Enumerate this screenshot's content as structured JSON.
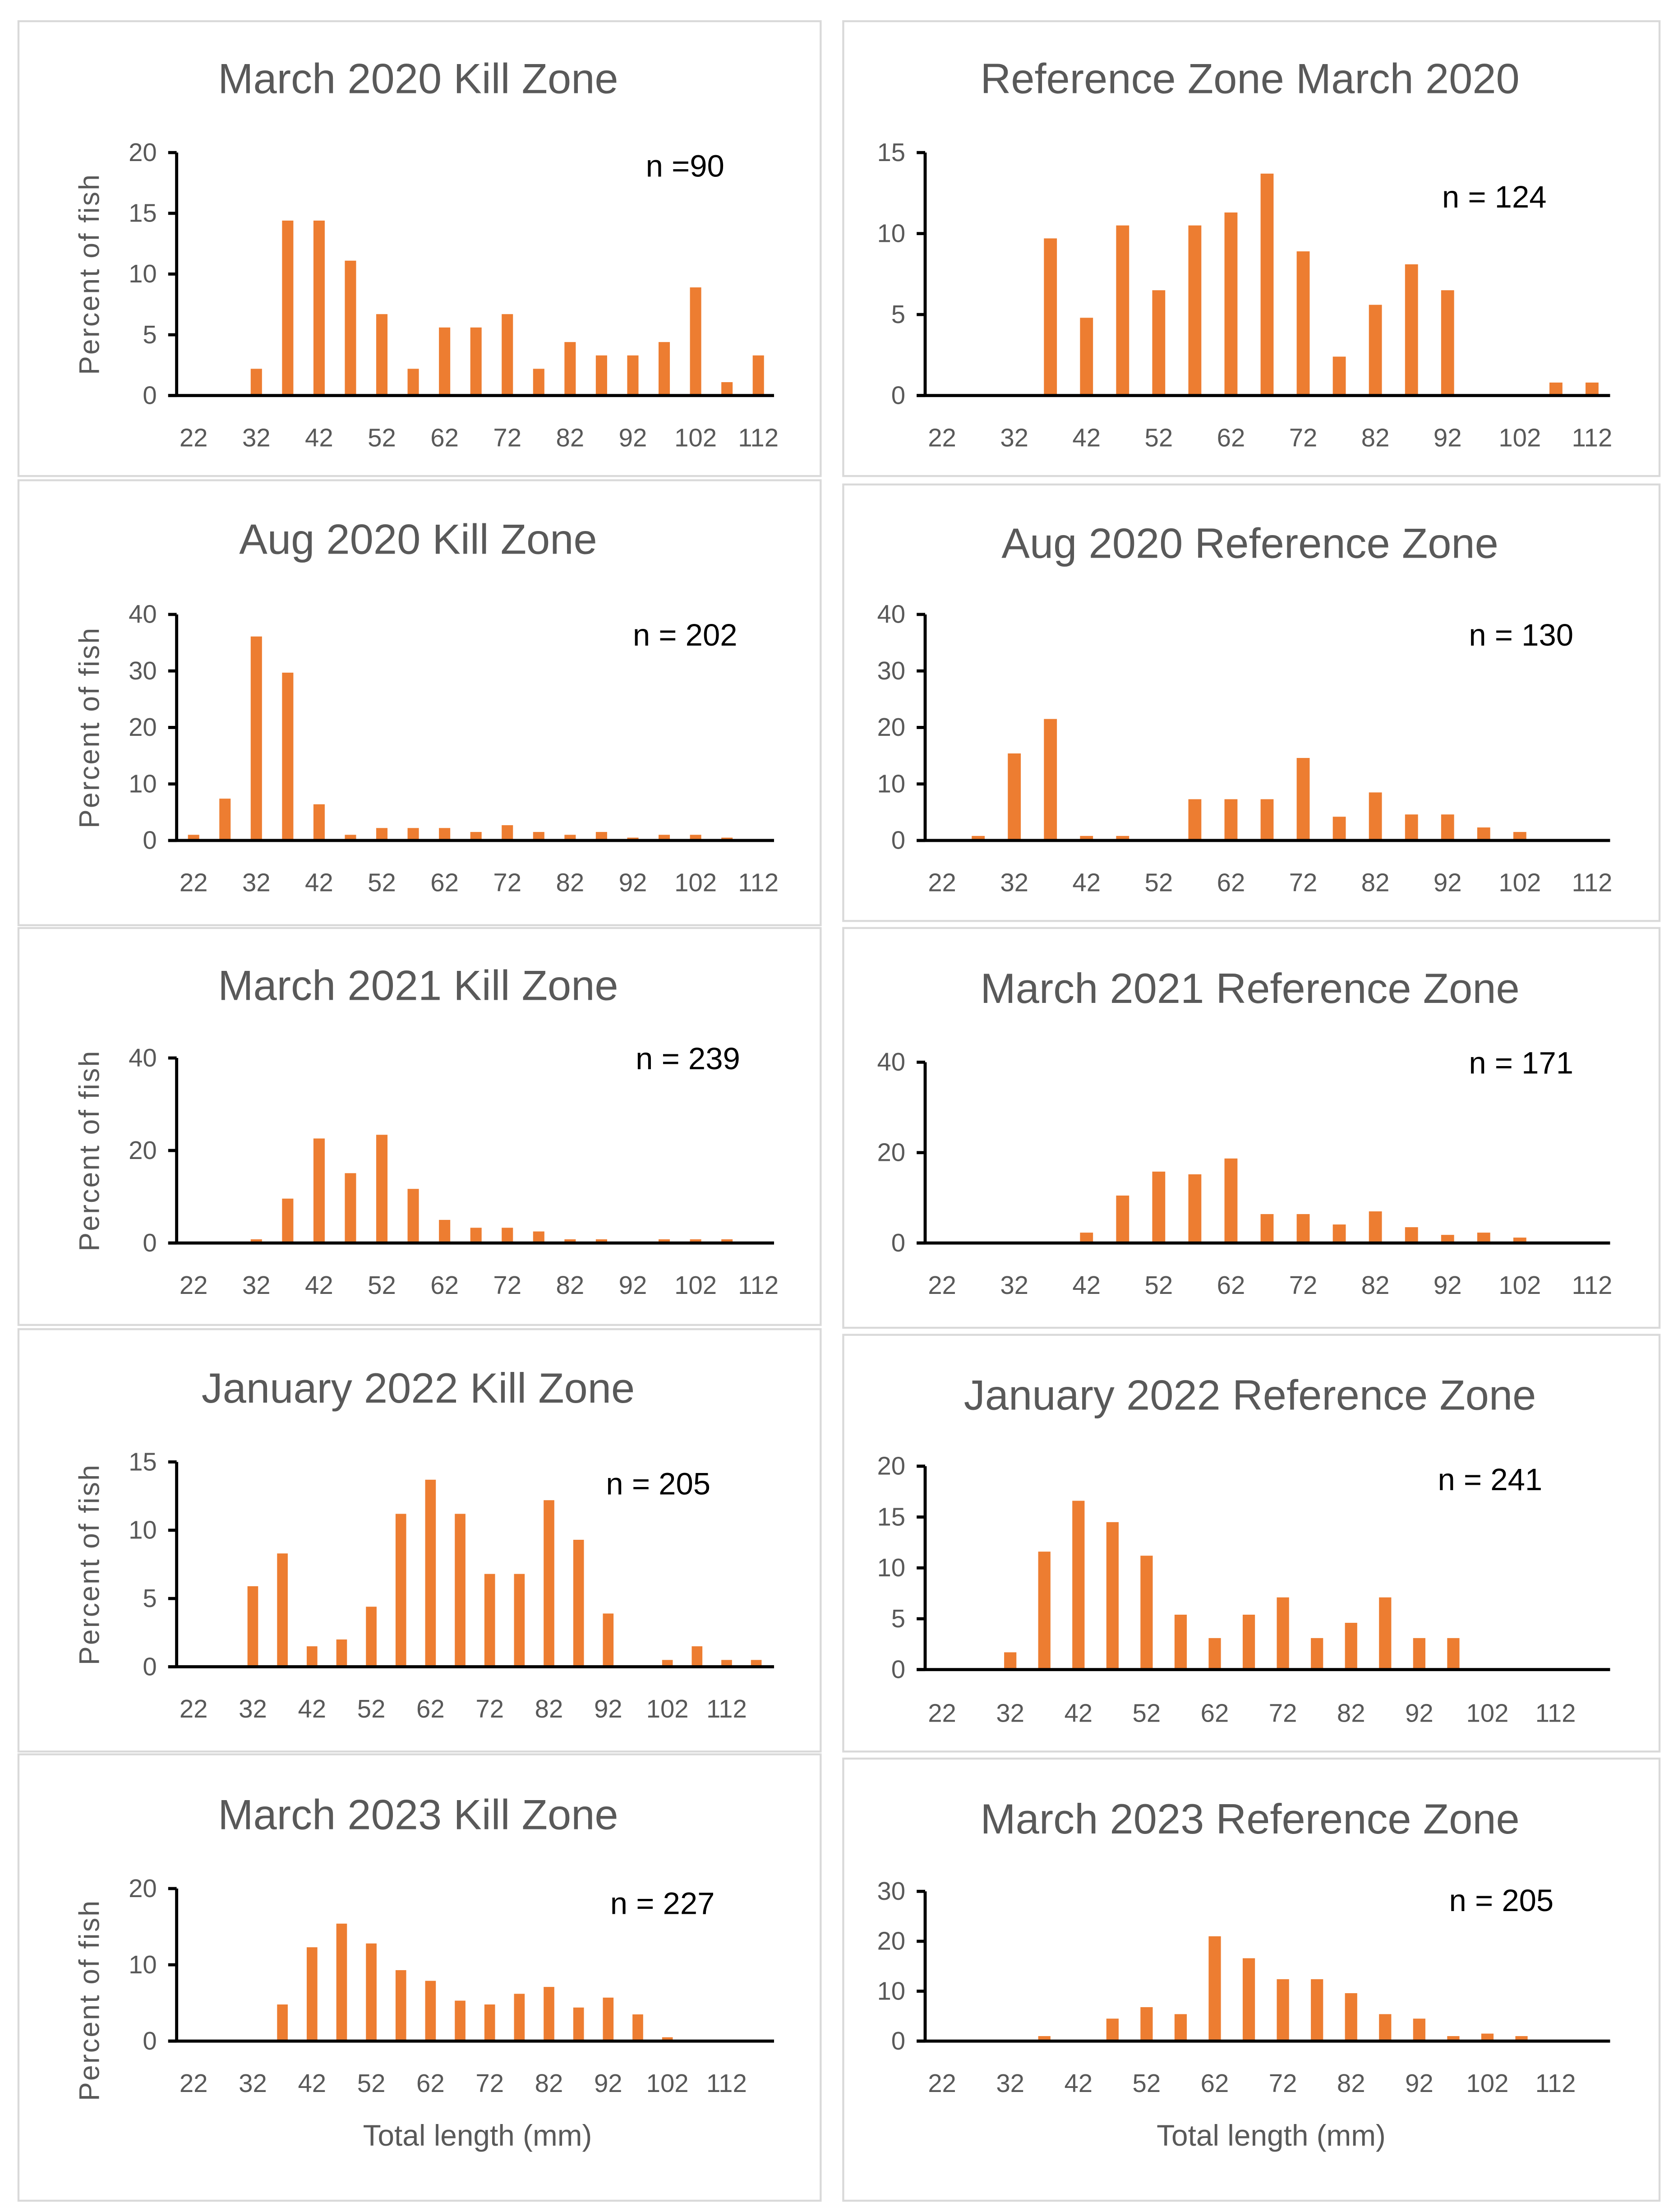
{
  "bar_color": "#ED7D31",
  "text_color": "#595959",
  "chart_data": [
    {
      "type": "bar",
      "title": "March 2020 Kill Zone",
      "annotation": "n =90",
      "ylabel": "Percent of fish",
      "xlabel": "",
      "categories": [
        "22",
        "27",
        "32",
        "37",
        "42",
        "47",
        "52",
        "57",
        "62",
        "67",
        "72",
        "77",
        "82",
        "87",
        "92",
        "97",
        "102",
        "107",
        "112"
      ],
      "x_tick_labels": [
        "22",
        "32",
        "42",
        "52",
        "62",
        "72",
        "82",
        "92",
        "102",
        "112"
      ],
      "values": [
        0,
        0,
        2.2,
        14.4,
        14.4,
        11.1,
        6.7,
        2.2,
        5.6,
        5.6,
        6.7,
        2.2,
        4.4,
        3.3,
        3.3,
        4.4,
        8.9,
        1.1,
        3.3
      ],
      "ylim": [
        0,
        20
      ],
      "yticks": [
        "0",
        "5",
        "10",
        "15",
        "20"
      ],
      "grid": false
    },
    {
      "type": "bar",
      "title": "Reference Zone March 2020",
      "annotation": "n = 124",
      "ylabel": "",
      "xlabel": "",
      "categories": [
        "22",
        "27",
        "32",
        "37",
        "42",
        "47",
        "52",
        "57",
        "62",
        "67",
        "72",
        "77",
        "82",
        "87",
        "92",
        "97",
        "102",
        "107",
        "112"
      ],
      "x_tick_labels": [
        "22",
        "32",
        "42",
        "52",
        "62",
        "72",
        "82",
        "92",
        "102",
        "112"
      ],
      "values": [
        0,
        0,
        0,
        9.7,
        4.8,
        10.5,
        6.5,
        10.5,
        11.3,
        13.7,
        8.9,
        2.4,
        5.6,
        8.1,
        6.5,
        0,
        0,
        0.8,
        0.8
      ],
      "ylim": [
        0,
        15
      ],
      "yticks": [
        "0",
        "5",
        "10",
        "15"
      ],
      "grid": false
    },
    {
      "type": "bar",
      "title": "Aug 2020 Kill Zone",
      "annotation": "n = 202",
      "ylabel": "Percent of fish",
      "xlabel": "",
      "categories": [
        "22",
        "27",
        "32",
        "37",
        "42",
        "47",
        "52",
        "57",
        "62",
        "67",
        "72",
        "77",
        "82",
        "87",
        "92",
        "97",
        "102",
        "107",
        "112"
      ],
      "x_tick_labels": [
        "22",
        "32",
        "42",
        "52",
        "62",
        "72",
        "82",
        "92",
        "102",
        "112"
      ],
      "values": [
        1,
        7.4,
        36.1,
        29.7,
        6.4,
        1,
        2.2,
        2.2,
        2.2,
        1.5,
        2.7,
        1.5,
        1,
        1.5,
        0.5,
        1,
        1,
        0.5,
        0
      ],
      "ylim": [
        0,
        40
      ],
      "yticks": [
        "0",
        "10",
        "20",
        "30",
        "40"
      ],
      "grid": false
    },
    {
      "type": "bar",
      "title": "Aug 2020 Reference Zone",
      "annotation": "n = 130",
      "ylabel": "",
      "xlabel": "",
      "categories": [
        "22",
        "27",
        "32",
        "37",
        "42",
        "47",
        "52",
        "57",
        "62",
        "67",
        "72",
        "77",
        "82",
        "87",
        "92",
        "97",
        "102",
        "107",
        "112"
      ],
      "x_tick_labels": [
        "22",
        "32",
        "42",
        "52",
        "62",
        "72",
        "82",
        "92",
        "102",
        "112"
      ],
      "values": [
        0,
        0.8,
        15.4,
        21.5,
        0.8,
        0.8,
        0,
        7.3,
        7.3,
        7.3,
        14.6,
        4.2,
        8.5,
        4.6,
        4.6,
        2.3,
        1.5,
        0,
        0
      ],
      "ylim": [
        0,
        40
      ],
      "yticks": [
        "0",
        "10",
        "20",
        "30",
        "40"
      ],
      "grid": false
    },
    {
      "type": "bar",
      "title": "March 2021 Kill Zone",
      "annotation": "n = 239",
      "ylabel": "Percent of fish",
      "xlabel": "",
      "categories": [
        "22",
        "27",
        "32",
        "37",
        "42",
        "47",
        "52",
        "57",
        "62",
        "67",
        "72",
        "77",
        "82",
        "87",
        "92",
        "97",
        "102",
        "107",
        "112"
      ],
      "x_tick_labels": [
        "22",
        "32",
        "42",
        "52",
        "62",
        "72",
        "82",
        "92",
        "102",
        "112"
      ],
      "values": [
        0,
        0,
        0.8,
        9.6,
        22.6,
        15.1,
        23.4,
        11.7,
        5.0,
        3.3,
        3.3,
        2.5,
        0.8,
        0.8,
        0,
        0.8,
        0.8,
        0.8,
        0
      ],
      "ylim": [
        0,
        40
      ],
      "yticks": [
        "0",
        "20",
        "40"
      ],
      "grid": false
    },
    {
      "type": "bar",
      "title": "March 2021 Reference Zone",
      "annotation": "n = 171",
      "ylabel": "",
      "xlabel": "",
      "categories": [
        "22",
        "27",
        "32",
        "37",
        "42",
        "47",
        "52",
        "57",
        "62",
        "67",
        "72",
        "77",
        "82",
        "87",
        "92",
        "97",
        "102",
        "107",
        "112"
      ],
      "x_tick_labels": [
        "22",
        "32",
        "42",
        "52",
        "62",
        "72",
        "82",
        "92",
        "102",
        "112"
      ],
      "values": [
        0,
        0,
        0,
        0,
        2.3,
        10.5,
        15.8,
        15.2,
        18.7,
        6.4,
        6.4,
        4.1,
        7.0,
        3.5,
        1.8,
        2.3,
        1.2,
        0,
        0
      ],
      "ylim": [
        0,
        40
      ],
      "yticks": [
        "0",
        "20",
        "40"
      ],
      "grid": false
    },
    {
      "type": "bar",
      "title": "January 2022 Kill Zone",
      "annotation": "n = 205",
      "ylabel": "Percent of fish",
      "xlabel": "",
      "categories": [
        "22",
        "27",
        "32",
        "37",
        "42",
        "47",
        "52",
        "57",
        "62",
        "67",
        "72",
        "77",
        "82",
        "87",
        "92",
        "97",
        "102",
        "107",
        "112",
        "117"
      ],
      "x_tick_labels": [
        "22",
        "32",
        "42",
        "52",
        "62",
        "72",
        "82",
        "92",
        "102",
        "112"
      ],
      "values": [
        0,
        0,
        5.9,
        8.3,
        1.5,
        2.0,
        4.4,
        11.2,
        13.7,
        11.2,
        6.8,
        6.8,
        12.2,
        9.3,
        3.9,
        0,
        0.5,
        1.5,
        0.5,
        0.5
      ],
      "ylim": [
        0,
        15
      ],
      "yticks": [
        "0",
        "5",
        "10",
        "15"
      ],
      "grid": false
    },
    {
      "type": "bar",
      "title": "January 2022 Reference Zone",
      "annotation": "n = 241",
      "ylabel": "",
      "xlabel": "",
      "categories": [
        "22",
        "27",
        "32",
        "37",
        "42",
        "47",
        "52",
        "57",
        "62",
        "67",
        "72",
        "77",
        "82",
        "87",
        "92",
        "97",
        "102",
        "107",
        "112",
        "117"
      ],
      "x_tick_labels": [
        "22",
        "32",
        "42",
        "52",
        "62",
        "72",
        "82",
        "92",
        "102",
        "112"
      ],
      "values": [
        0,
        0,
        1.7,
        11.6,
        16.6,
        14.5,
        11.2,
        5.4,
        3.1,
        5.4,
        7.1,
        3.1,
        4.6,
        7.1,
        3.1,
        3.1,
        0,
        0,
        0,
        0
      ],
      "ylim": [
        0,
        20
      ],
      "yticks": [
        "0",
        "5",
        "10",
        "15",
        "20"
      ],
      "grid": false
    },
    {
      "type": "bar",
      "title": "March 2023 Kill Zone",
      "annotation": "n = 227",
      "ylabel": "Percent of fish",
      "xlabel": "Total length (mm)",
      "categories": [
        "22",
        "27",
        "32",
        "37",
        "42",
        "47",
        "52",
        "57",
        "62",
        "67",
        "72",
        "77",
        "82",
        "87",
        "92",
        "97",
        "102",
        "107",
        "112",
        "117"
      ],
      "x_tick_labels": [
        "22",
        "32",
        "42",
        "52",
        "62",
        "72",
        "82",
        "92",
        "102",
        "112"
      ],
      "values": [
        0,
        0,
        0,
        4.8,
        12.3,
        15.4,
        12.8,
        9.3,
        7.9,
        5.3,
        4.8,
        6.2,
        7.1,
        4.4,
        5.7,
        3.5,
        0.5,
        0,
        0,
        0
      ],
      "ylim": [
        0,
        20
      ],
      "yticks": [
        "0",
        "10",
        "20"
      ],
      "grid": false
    },
    {
      "type": "bar",
      "title": "March 2023 Reference Zone",
      "annotation": "n = 205",
      "ylabel": "",
      "xlabel": "Total length (mm)",
      "categories": [
        "22",
        "27",
        "32",
        "37",
        "42",
        "47",
        "52",
        "57",
        "62",
        "67",
        "72",
        "77",
        "82",
        "87",
        "92",
        "97",
        "102",
        "107",
        "112",
        "117"
      ],
      "x_tick_labels": [
        "22",
        "32",
        "42",
        "52",
        "62",
        "72",
        "82",
        "92",
        "102",
        "112"
      ],
      "values": [
        0,
        0,
        0,
        1.0,
        0,
        4.5,
        6.8,
        5.4,
        21,
        16.6,
        12.4,
        12.4,
        9.6,
        5.4,
        4.5,
        1.0,
        1.5,
        1.0,
        0,
        0
      ],
      "ylim": [
        0,
        30
      ],
      "yticks": [
        "0",
        "10",
        "20",
        "30"
      ],
      "grid": false
    }
  ]
}
